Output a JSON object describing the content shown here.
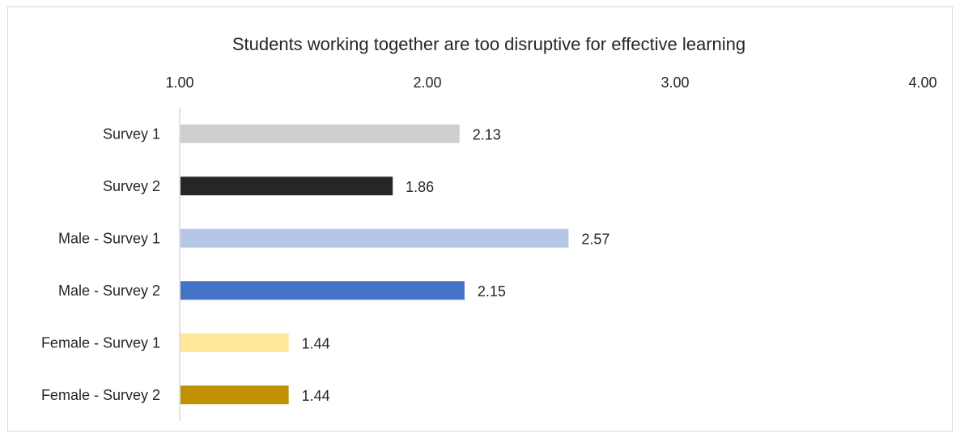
{
  "chart_data": {
    "type": "bar",
    "orientation": "horizontal",
    "title": "Students working together are too disruptive for effective learning",
    "xlabel": "",
    "ylabel": "",
    "xlim": [
      1.0,
      4.0
    ],
    "x_ticks": [
      "1.00",
      "2.00",
      "3.00",
      "4.00"
    ],
    "axis_position": "top",
    "grid": false,
    "legend": "none",
    "categories": [
      "Survey 1",
      "Survey 2",
      "Male - Survey 1",
      "Male - Survey 2",
      "Female - Survey 1",
      "Female - Survey 2"
    ],
    "values": [
      2.13,
      1.86,
      2.57,
      2.15,
      1.44,
      1.44
    ],
    "value_labels": [
      "2.13",
      "1.86",
      "2.57",
      "2.15",
      "1.44",
      "1.44"
    ],
    "colors": [
      "#cfcfcf",
      "#262626",
      "#b4c7e7",
      "#4472c4",
      "#ffe699",
      "#bf9000"
    ]
  }
}
